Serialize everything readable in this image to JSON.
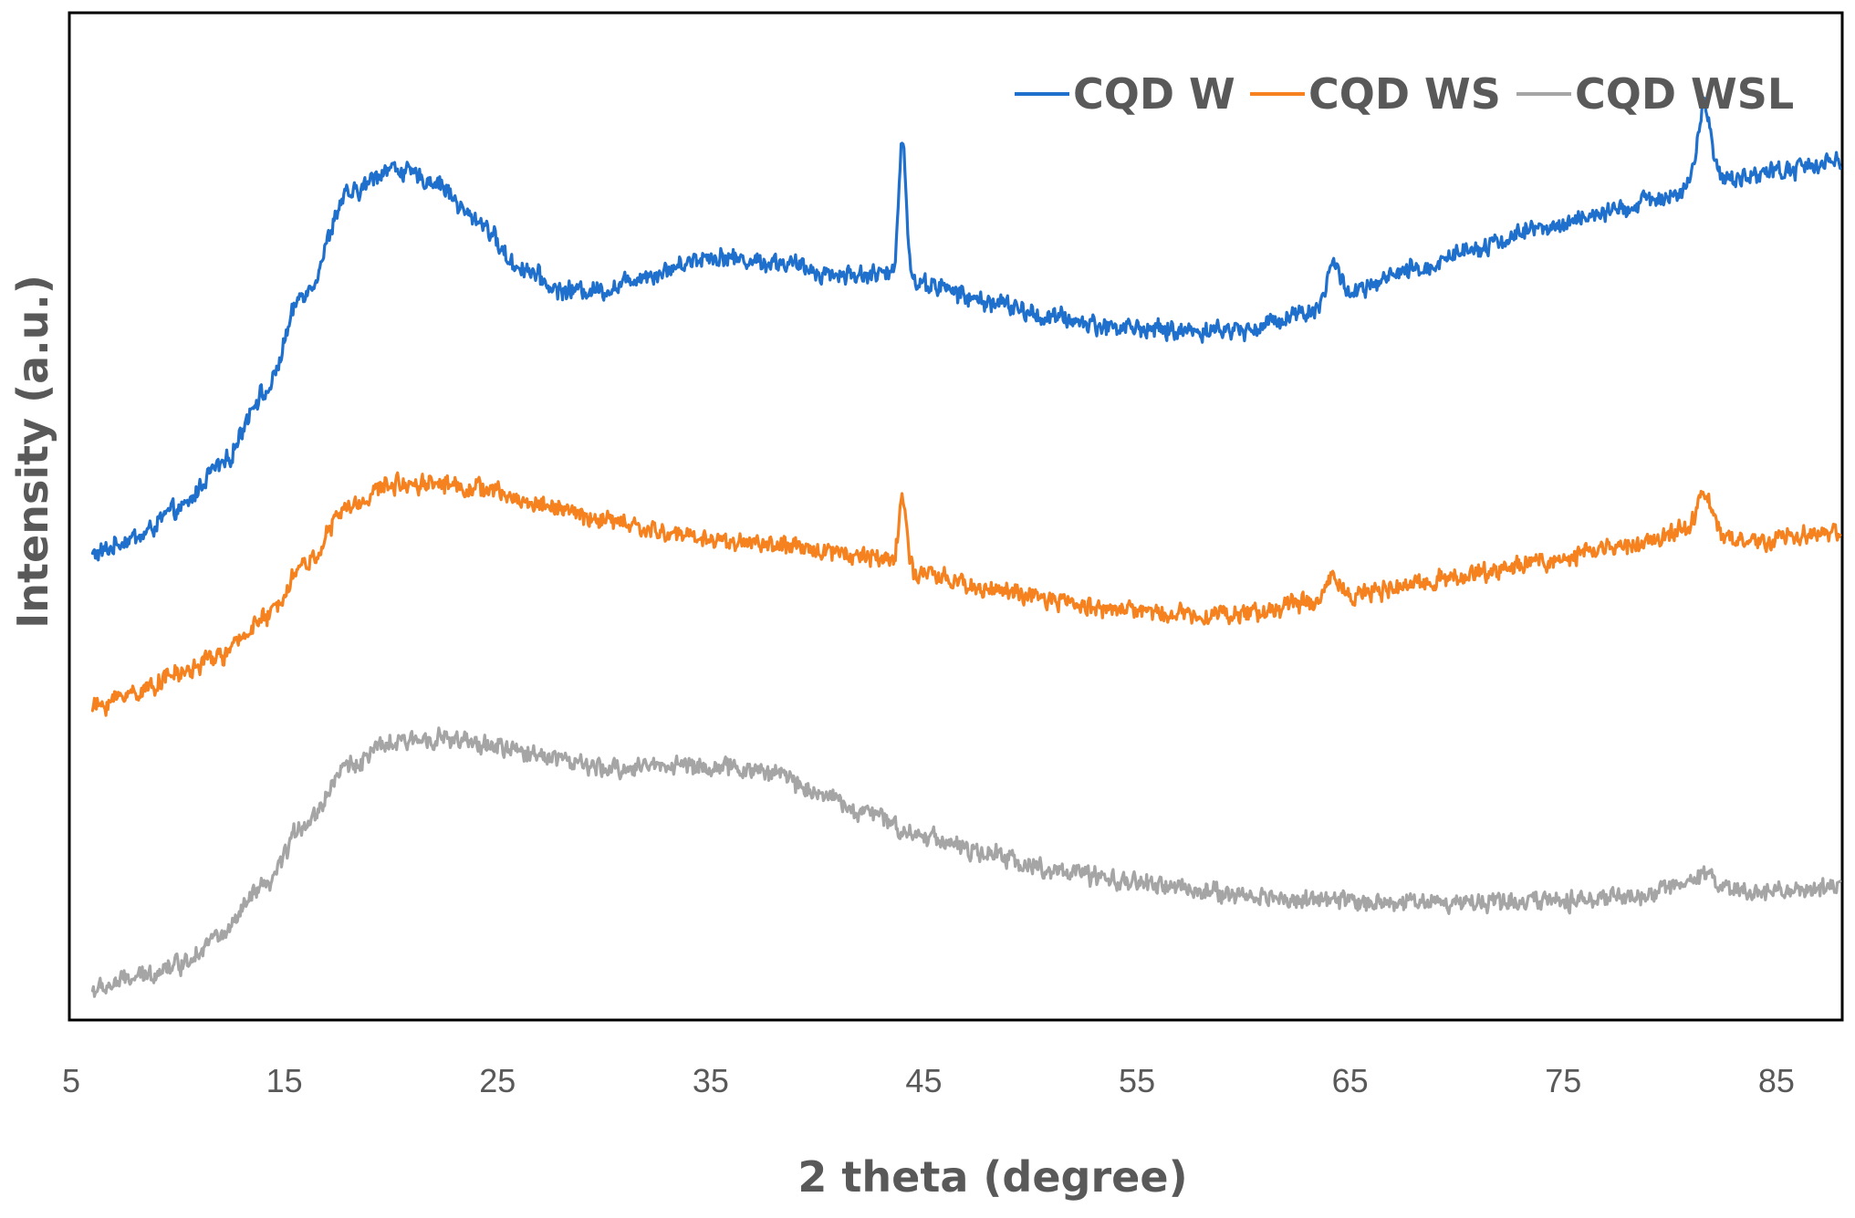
{
  "chart_data": {
    "type": "line",
    "title": "",
    "xlabel": "2 theta (degree)",
    "ylabel": "Intensity (a.u.)",
    "xlim": [
      5,
      88
    ],
    "ylim": [
      0,
      100
    ],
    "xticks": [
      5,
      15,
      25,
      35,
      45,
      55,
      65,
      75,
      85
    ],
    "grid": false,
    "legend_position": "top-right",
    "noise": 1.1,
    "series": [
      {
        "name": "CQD W",
        "color": "#1F6FCC",
        "baseline": [
          [
            6,
            46.2
          ],
          [
            8,
            47.9
          ],
          [
            10,
            50.6
          ],
          [
            12,
            55.0
          ],
          [
            14,
            62.1
          ],
          [
            16,
            72.5
          ],
          [
            18,
            82.0
          ],
          [
            20,
            84.7
          ],
          [
            22,
            83.4
          ],
          [
            24,
            79.6
          ],
          [
            26,
            74.9
          ],
          [
            28,
            72.5
          ],
          [
            30,
            72.6
          ],
          [
            32,
            74.1
          ],
          [
            35,
            75.9
          ],
          [
            38,
            75.3
          ],
          [
            41,
            74.1
          ],
          [
            43,
            74.1
          ],
          [
            45,
            73.2
          ],
          [
            48,
            71.4
          ],
          [
            51,
            69.8
          ],
          [
            54,
            68.9
          ],
          [
            57,
            68.5
          ],
          [
            60,
            68.6
          ],
          [
            63,
            70.4
          ],
          [
            65,
            72.3
          ],
          [
            68,
            74.5
          ],
          [
            71,
            76.9
          ],
          [
            74,
            78.7
          ],
          [
            77,
            80.2
          ],
          [
            80,
            82.0
          ],
          [
            82,
            83.4
          ],
          [
            85,
            84.4
          ],
          [
            88,
            85.5
          ]
        ],
        "peaks": [
          [
            44,
            14.0,
            0.18
          ],
          [
            64.2,
            3.5,
            0.3
          ],
          [
            81.6,
            7.8,
            0.3
          ]
        ]
      },
      {
        "name": "CQD WS",
        "color": "#F5821F",
        "baseline": [
          [
            6,
            31.0
          ],
          [
            8,
            32.5
          ],
          [
            10,
            34.3
          ],
          [
            12,
            36.1
          ],
          [
            14,
            39.7
          ],
          [
            16,
            45.3
          ],
          [
            18,
            50.9
          ],
          [
            20,
            53.2
          ],
          [
            22,
            53.4
          ],
          [
            24,
            52.8
          ],
          [
            27,
            51.2
          ],
          [
            30,
            49.6
          ],
          [
            33,
            48.3
          ],
          [
            36,
            47.5
          ],
          [
            40,
            46.7
          ],
          [
            43,
            45.9
          ],
          [
            45,
            44.1
          ],
          [
            48,
            42.8
          ],
          [
            51,
            41.6
          ],
          [
            54,
            40.8
          ],
          [
            57,
            40.3
          ],
          [
            60,
            40.3
          ],
          [
            63,
            41.4
          ],
          [
            66,
            42.4
          ],
          [
            70,
            44.0
          ],
          [
            74,
            45.5
          ],
          [
            78,
            47.1
          ],
          [
            81,
            48.9
          ],
          [
            84,
            47.4
          ],
          [
            88,
            48.5
          ]
        ],
        "peaks": [
          [
            44,
            7.0,
            0.18
          ],
          [
            64.2,
            2.5,
            0.3
          ],
          [
            81.6,
            3.8,
            0.3
          ]
        ]
      },
      {
        "name": "CQD WSL",
        "color": "#A5A5A5",
        "baseline": [
          [
            6,
            2.8
          ],
          [
            8,
            4.0
          ],
          [
            10,
            5.4
          ],
          [
            12,
            8.2
          ],
          [
            14,
            12.9
          ],
          [
            16,
            19.5
          ],
          [
            18,
            25.2
          ],
          [
            20,
            27.3
          ],
          [
            22,
            28.0
          ],
          [
            24,
            27.3
          ],
          [
            27,
            26.3
          ],
          [
            30,
            24.8
          ],
          [
            33,
            25.3
          ],
          [
            36,
            24.9
          ],
          [
            38,
            24.5
          ],
          [
            40,
            22.6
          ],
          [
            42,
            20.6
          ],
          [
            45,
            18.2
          ],
          [
            48,
            16.3
          ],
          [
            51,
            14.8
          ],
          [
            54,
            13.7
          ],
          [
            57,
            13.0
          ],
          [
            60,
            12.2
          ],
          [
            63,
            11.8
          ],
          [
            66,
            11.6
          ],
          [
            70,
            11.6
          ],
          [
            74,
            11.7
          ],
          [
            78,
            12.0
          ],
          [
            81,
            13.2
          ],
          [
            84,
            12.6
          ],
          [
            88,
            12.8
          ]
        ],
        "peaks": [
          [
            81.6,
            1.3,
            0.3
          ]
        ]
      }
    ]
  }
}
